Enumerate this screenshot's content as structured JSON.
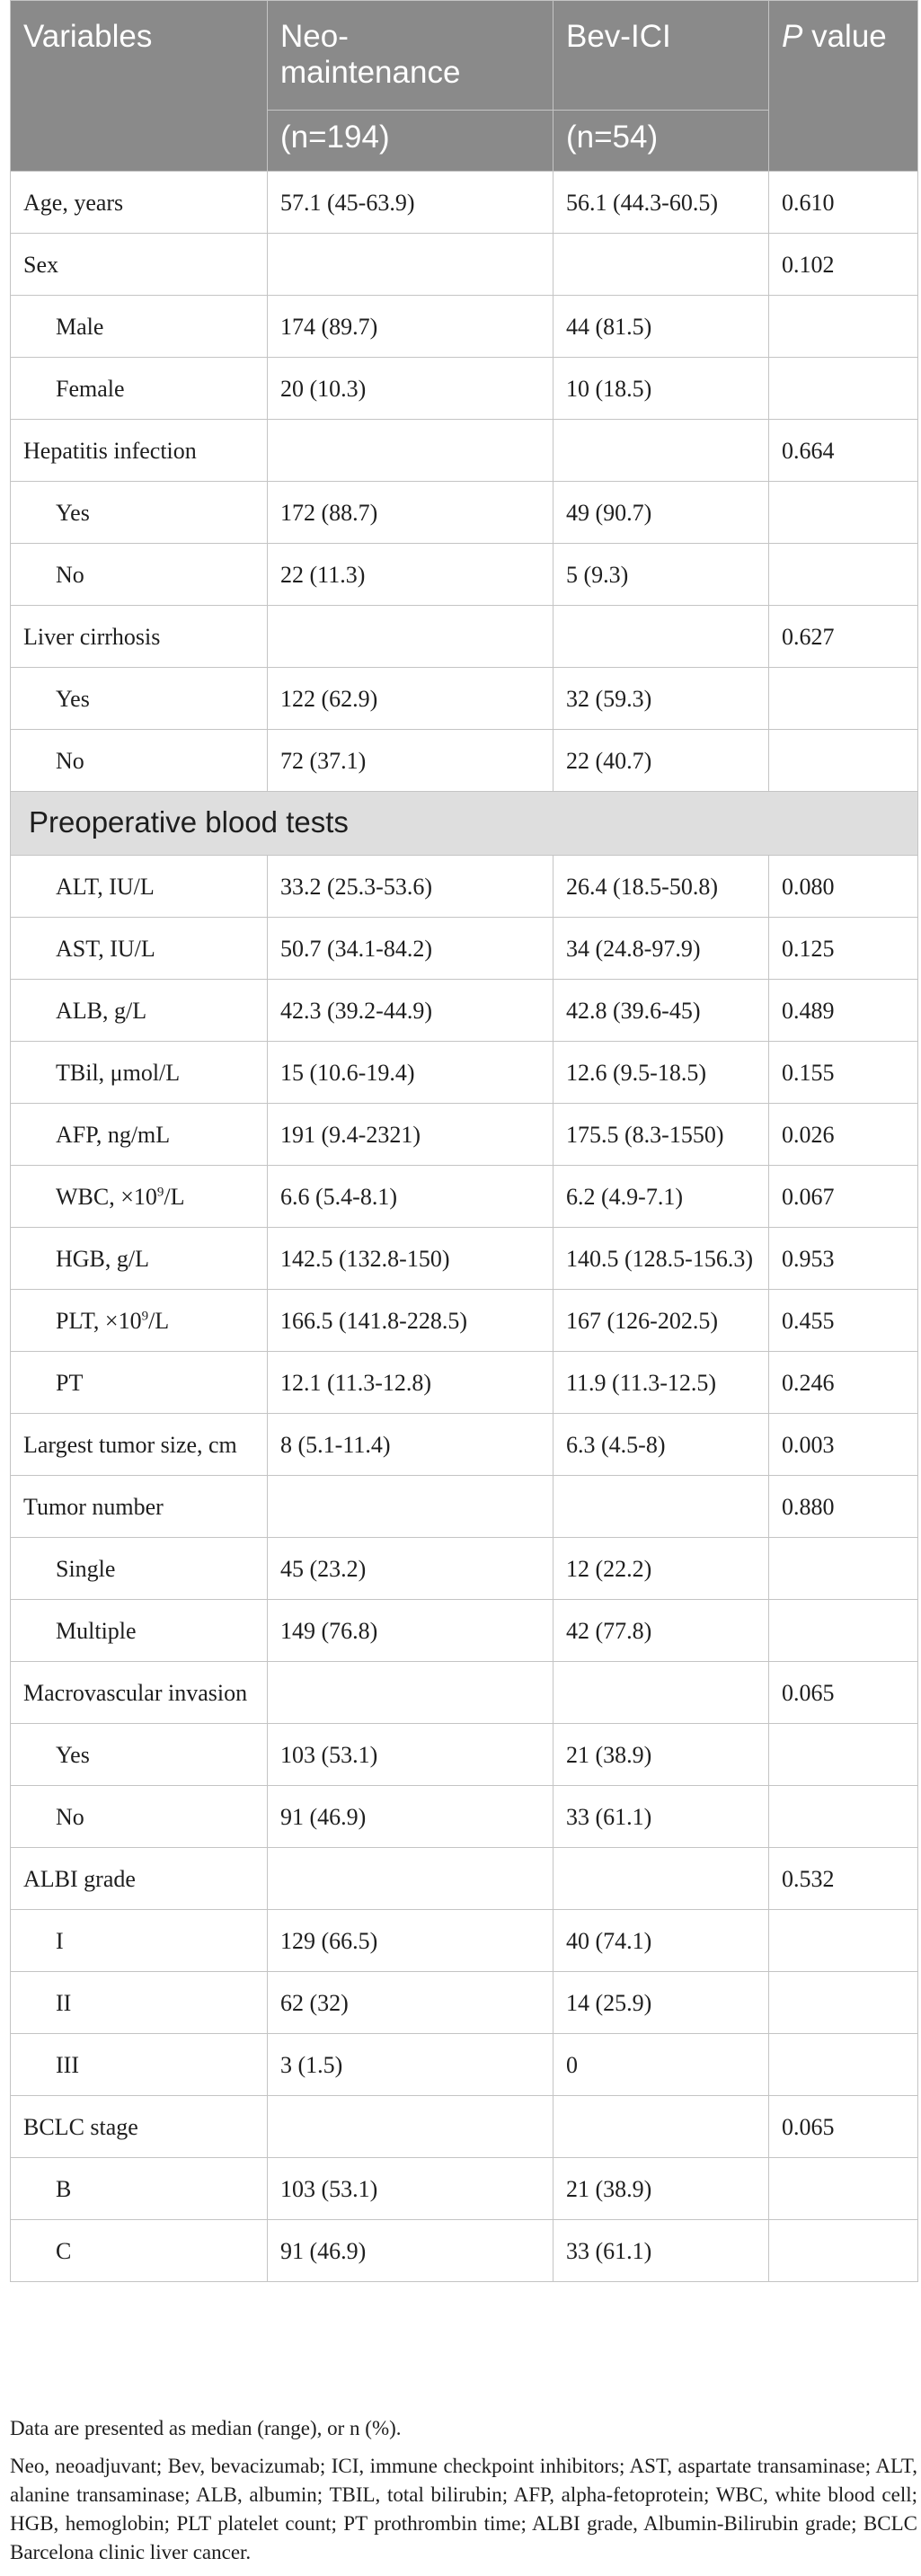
{
  "header": {
    "variables": "Variables",
    "neo": "Neo-\nmaintenance",
    "neo_n": "(n=194)",
    "bev": "Bev-ICI",
    "bev_n": "(n=54)",
    "p_italic": "P",
    "p_rest": " value"
  },
  "rows": [
    {
      "label": "Age, years",
      "neo": "57.1 (45-63.9)",
      "bev": "56.1 (44.3-60.5)",
      "p": "0.610"
    },
    {
      "label": "Sex",
      "neo": "",
      "bev": "",
      "p": "0.102"
    },
    {
      "label": "Male",
      "neo": "174 (89.7)",
      "bev": "44 (81.5)",
      "p": ""
    },
    {
      "label": "Female",
      "neo": "20 (10.3)",
      "bev": "10 (18.5)",
      "p": ""
    },
    {
      "label": "Hepatitis infection",
      "neo": "",
      "bev": "",
      "p": "0.664"
    },
    {
      "label": "Yes",
      "neo": "172 (88.7)",
      "bev": "49 (90.7)",
      "p": ""
    },
    {
      "label": "No",
      "neo": "22 (11.3)",
      "bev": "5 (9.3)",
      "p": ""
    },
    {
      "label": "Liver cirrhosis",
      "neo": "",
      "bev": "",
      "p": "0.627"
    },
    {
      "label": "Yes",
      "neo": "122 (62.9)",
      "bev": "32 (59.3)",
      "p": ""
    },
    {
      "label": "No",
      "neo": "72 (37.1)",
      "bev": "22 (40.7)",
      "p": ""
    },
    {
      "section": "Preoperative blood tests"
    },
    {
      "label": "ALT, IU/L",
      "neo": "33.2 (25.3-53.6)",
      "bev": "26.4 (18.5-50.8)",
      "p": "0.080"
    },
    {
      "label": "AST, IU/L",
      "neo": "50.7 (34.1-84.2)",
      "bev": "34 (24.8-97.9)",
      "p": "0.125"
    },
    {
      "label": "ALB, g/L",
      "neo": "42.3 (39.2-44.9)",
      "bev": "42.8 (39.6-45)",
      "p": "0.489"
    },
    {
      "label": "TBil, μmol/L",
      "neo": "15 (10.6-19.4)",
      "bev": "12.6 (9.5-18.5)",
      "p": "0.155"
    },
    {
      "label": "AFP, ng/mL",
      "neo": "191 (9.4-2321)",
      "bev": "175.5 (8.3-1550)",
      "p": "0.026"
    },
    {
      "label": "WBC, ×10",
      "sup": "9",
      "label_after": "/L",
      "neo": "6.6 (5.4-8.1)",
      "bev": "6.2 (4.9-7.1)",
      "p": "0.067"
    },
    {
      "label": "HGB, g/L",
      "neo": "142.5 (132.8-150)",
      "bev": "140.5 (128.5-156.3)",
      "p": "0.953"
    },
    {
      "label": "PLT, ×10",
      "sup": "9",
      "label_after": "/L",
      "neo": "166.5 (141.8-228.5)",
      "bev": "167 (126-202.5)",
      "p": "0.455"
    },
    {
      "label": "PT",
      "neo": "12.1 (11.3-12.8)",
      "bev": "11.9 (11.3-12.5)",
      "p": "0.246"
    },
    {
      "label": "Largest tumor size, cm",
      "neo": "8 (5.1-11.4)",
      "bev": "6.3 (4.5-8)",
      "p": "0.003"
    },
    {
      "label": "Tumor number",
      "neo": "",
      "bev": "",
      "p": "0.880"
    },
    {
      "label": "Single",
      "neo": "45 (23.2)",
      "bev": "12 (22.2)",
      "p": ""
    },
    {
      "label": "Multiple",
      "neo": "149 (76.8)",
      "bev": "42 (77.8)",
      "p": ""
    },
    {
      "label": "Macrovascular invasion",
      "neo": "",
      "bev": "",
      "p": "0.065"
    },
    {
      "label": "Yes",
      "neo": "103 (53.1)",
      "bev": "21 (38.9)",
      "p": ""
    },
    {
      "label": "No",
      "neo": "91 (46.9)",
      "bev": "33 (61.1)",
      "p": ""
    },
    {
      "label": "ALBI grade",
      "neo": "",
      "bev": "",
      "p": "0.532"
    },
    {
      "label": "I",
      "neo": "129 (66.5)",
      "bev": "40 (74.1)",
      "p": ""
    },
    {
      "label": "II",
      "neo": "62 (32)",
      "bev": "14 (25.9)",
      "p": ""
    },
    {
      "label": "III",
      "neo": "3 (1.5)",
      "bev": "0",
      "p": ""
    },
    {
      "label": "BCLC stage",
      "neo": "",
      "bev": "",
      "p": "0.065"
    },
    {
      "label": "B",
      "neo": "103 (53.1)",
      "bev": "21 (38.9)",
      "p": ""
    },
    {
      "label": "C",
      "neo": "91 (46.9)",
      "bev": "33 (61.1)",
      "p": ""
    }
  ],
  "notes": {
    "line1": "Data are presented as median (range), or n (%).",
    "line2": "Neo, neoadjuvant; Bev, bevacizumab; ICI, immune checkpoint inhibitors; AST, aspartate transaminase; ALT, alanine transaminase; ALB, albumin; TBIL, total bilirubin; AFP, alpha-fetoprotein; WBC, white blood cell; HGB, hemoglobin; PLT platelet count; PT prothrombin time; ALBI grade, Albumin-Bilirubin grade; BCLC Barcelona clinic liver cancer."
  }
}
